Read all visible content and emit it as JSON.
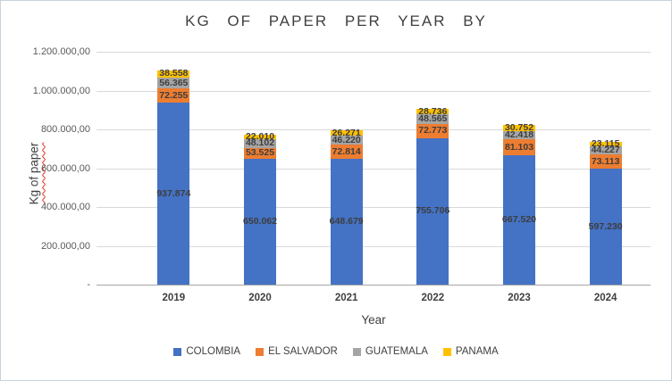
{
  "title": "KG OF PAPER PER YEAR BY",
  "axes": {
    "x_label": "Year",
    "y_label": "Kg of paper"
  },
  "chart_data": {
    "type": "bar",
    "stacked": true,
    "title": "KG OF PAPER PER YEAR BY",
    "xlabel": "Year",
    "ylabel": "Kg of paper",
    "ylim": [
      0,
      1200000
    ],
    "grid": true,
    "legend_position": "bottom",
    "y_ticks": [
      "1.200.000,00",
      "1.000.000,00",
      "800.000,00",
      "600.000,00",
      "400.000,00",
      "200.000,00",
      "-"
    ],
    "categories": [
      "2019",
      "2020",
      "2021",
      "2022",
      "2023",
      "2024"
    ],
    "series": [
      {
        "name": "COLOMBIA",
        "color": "#4472C4",
        "values": [
          937874,
          650062,
          648679,
          755706,
          667520,
          597230
        ],
        "labels": [
          "937.874",
          "650.062",
          "648.679",
          "755.706",
          "667.520",
          "597.230"
        ]
      },
      {
        "name": "EL SALVADOR",
        "color": "#ED7D31",
        "values": [
          72255,
          53525,
          72814,
          72773,
          81103,
          73113
        ],
        "labels": [
          "72.255",
          "53.525",
          "72.814",
          "72.773",
          "81.103",
          "73.113"
        ]
      },
      {
        "name": "GUATEMALA",
        "color": "#A5A5A5",
        "values": [
          56365,
          48102,
          46220,
          48565,
          42418,
          44227
        ],
        "labels": [
          "56.365",
          "48.102",
          "46.220",
          "48.565",
          "42.418",
          "44.227"
        ]
      },
      {
        "name": "PANAMA",
        "color": "#FFC000",
        "values": [
          38558,
          22010,
          26271,
          28736,
          30752,
          23115
        ],
        "labels": [
          "38.558",
          "22.010",
          "26.271",
          "28.736",
          "30.752",
          "23.115"
        ]
      }
    ]
  }
}
